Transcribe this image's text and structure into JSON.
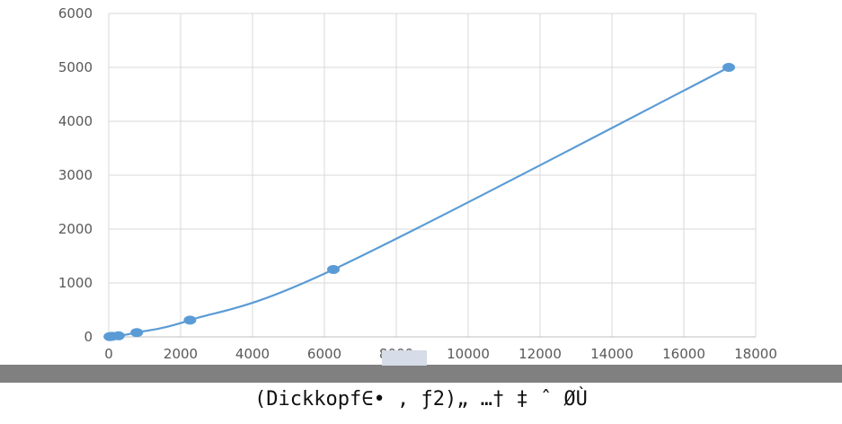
{
  "chart_data": {
    "type": "scatter",
    "title": "",
    "xlabel": "",
    "ylabel": "",
    "xlim": [
      0,
      18000
    ],
    "ylim": [
      0,
      6000
    ],
    "x_ticks": [
      0,
      2000,
      4000,
      6000,
      8000,
      10000,
      12000,
      14000,
      16000,
      18000
    ],
    "y_ticks": [
      0,
      1000,
      2000,
      3000,
      4000,
      5000,
      6000
    ],
    "grid": true,
    "legend": "none",
    "colors": {
      "series": "#5b9bd5",
      "grid": "#d9d9d9"
    },
    "series": [
      {
        "points": [
          {
            "x": 30,
            "y": 5
          },
          {
            "x": 90,
            "y": 10
          },
          {
            "x": 270,
            "y": 20
          },
          {
            "x": 780,
            "y": 80
          },
          {
            "x": 2260,
            "y": 310
          },
          {
            "x": 6250,
            "y": 1250
          },
          {
            "x": 17250,
            "y": 5000
          }
        ],
        "trendline": "smooth"
      }
    ]
  },
  "caption": "(Dickkopf∈• , ƒ2)„ …† ‡ ˆ ØÙ"
}
